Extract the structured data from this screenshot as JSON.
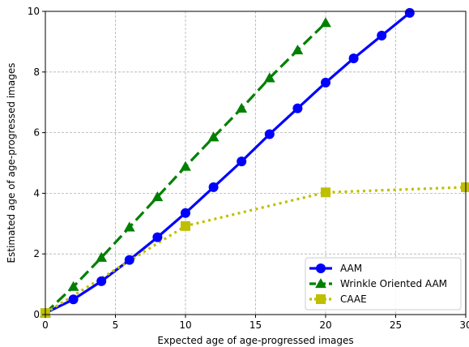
{
  "chart_data": {
    "type": "line",
    "xlabel": "Expected age of age-progressed images",
    "ylabel": "Estimated age of age-progressed images",
    "xlim": [
      0,
      30
    ],
    "ylim": [
      0,
      10
    ],
    "xticks": [
      0,
      5,
      10,
      15,
      20,
      25,
      30
    ],
    "yticks": [
      0,
      2,
      4,
      6,
      8,
      10
    ],
    "grid": true,
    "legend_position": "lower-right",
    "series": [
      {
        "name": "AAM",
        "color": "#0000ff",
        "line_style": "solid",
        "marker": "circle",
        "x": [
          0,
          2,
          4,
          6,
          8,
          10,
          12,
          14,
          16,
          18,
          20,
          22,
          24,
          26
        ],
        "y": [
          0.05,
          0.5,
          1.1,
          1.8,
          2.55,
          3.35,
          4.2,
          5.05,
          5.95,
          6.8,
          7.65,
          8.45,
          9.2,
          9.95
        ]
      },
      {
        "name": "Wrinkle Oriented AAM",
        "color": "#008000",
        "line_style": "dashed",
        "marker": "triangle",
        "x": [
          0,
          2,
          4,
          6,
          8,
          10,
          12,
          14,
          16,
          18,
          20
        ],
        "y": [
          0.05,
          0.92,
          1.88,
          2.88,
          3.88,
          4.88,
          5.85,
          6.8,
          7.8,
          8.72,
          9.62
        ]
      },
      {
        "name": "CAAE",
        "color": "#bfbf00",
        "line_style": "dotted",
        "marker": "square",
        "x": [
          0,
          10,
          20,
          30
        ],
        "y": [
          0.05,
          2.92,
          4.03,
          4.2
        ]
      }
    ]
  }
}
